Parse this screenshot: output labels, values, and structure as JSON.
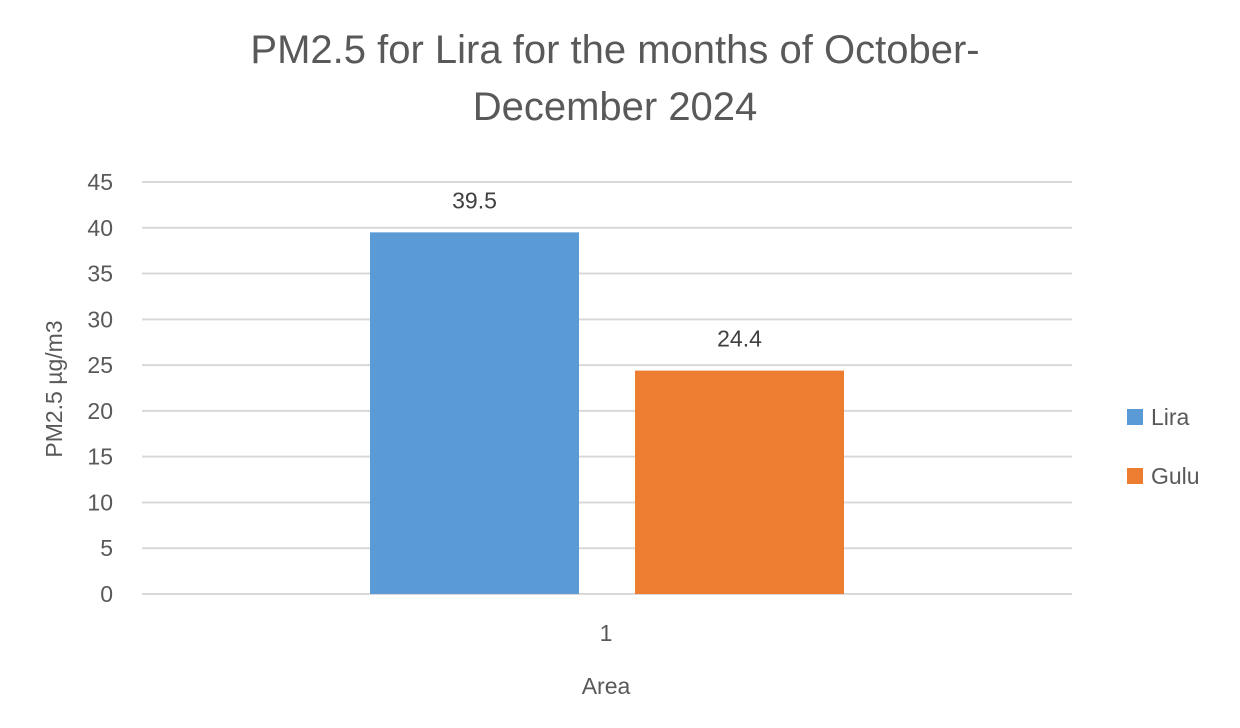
{
  "chart_data": {
    "type": "bar",
    "title": "PM2.5 for Lira for the months of October-December 2024",
    "title_lines": [
      "PM2.5 for Lira for the months of October-",
      "December 2024"
    ],
    "xlabel": "Area",
    "ylabel": "PM2.5 µg/m3",
    "categories": [
      "1"
    ],
    "series": [
      {
        "name": "Lira",
        "values": [
          39.5
        ],
        "color": "#5b9bd5"
      },
      {
        "name": "Gulu",
        "values": [
          24.4
        ],
        "color": "#ed7d31"
      }
    ],
    "ylim": [
      0,
      45
    ],
    "yticks": [
      "0",
      "5",
      "10",
      "15",
      "20",
      "25",
      "30",
      "35",
      "40",
      "45"
    ],
    "data_labels": [
      "39.5",
      "24.4"
    ],
    "grid": true,
    "legend": "right"
  }
}
